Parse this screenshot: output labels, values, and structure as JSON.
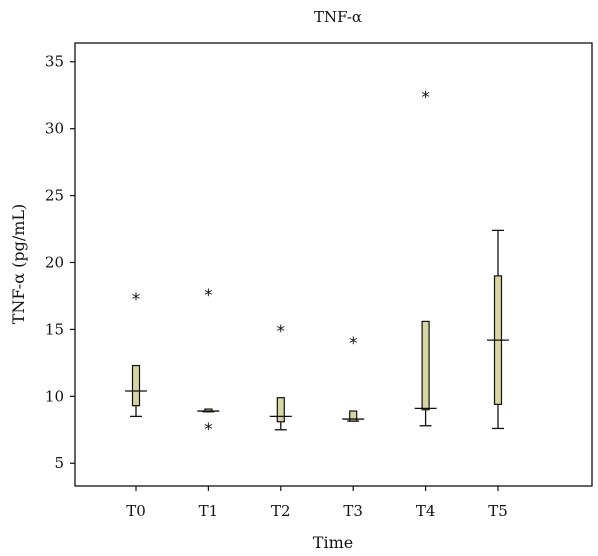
{
  "chart_data": {
    "type": "box",
    "title": "TNF-α",
    "xlabel": "Time",
    "ylabel": "TNF-α (pg/mL)",
    "ylim": [
      3.3,
      36.4
    ],
    "yticks": [
      5,
      10,
      15,
      20,
      25,
      30,
      35
    ],
    "grid": false,
    "legend": "none",
    "box_color": "#d6d5a3",
    "categories": [
      "T0",
      "T1",
      "T2",
      "T3",
      "T4",
      "T5"
    ],
    "boxes": [
      {
        "category": "T0",
        "whisker_low": 8.5,
        "q1": 9.3,
        "median": 10.4,
        "q3": 12.3,
        "whisker_high": 12.3,
        "outliers": [
          17.5
        ]
      },
      {
        "category": "T1",
        "whisker_low": 8.85,
        "q1": 8.85,
        "median": 8.9,
        "q3": 9.05,
        "whisker_high": 9.05,
        "outliers": [
          17.8,
          7.8
        ]
      },
      {
        "category": "T2",
        "whisker_low": 7.5,
        "q1": 8.1,
        "median": 8.5,
        "q3": 9.9,
        "whisker_high": 9.9,
        "outliers": [
          15.1
        ]
      },
      {
        "category": "T3",
        "whisker_low": 8.15,
        "q1": 8.15,
        "median": 8.3,
        "q3": 8.9,
        "whisker_high": 8.9,
        "outliers": [
          14.2
        ]
      },
      {
        "category": "T4",
        "whisker_low": 7.8,
        "q1": 9.0,
        "median": 9.1,
        "q3": 15.6,
        "whisker_high": 15.6,
        "outliers": [
          32.6
        ]
      },
      {
        "category": "T5",
        "whisker_low": 7.6,
        "q1": 9.4,
        "median": 14.2,
        "q3": 19.0,
        "whisker_high": 22.4,
        "outliers": []
      }
    ]
  }
}
